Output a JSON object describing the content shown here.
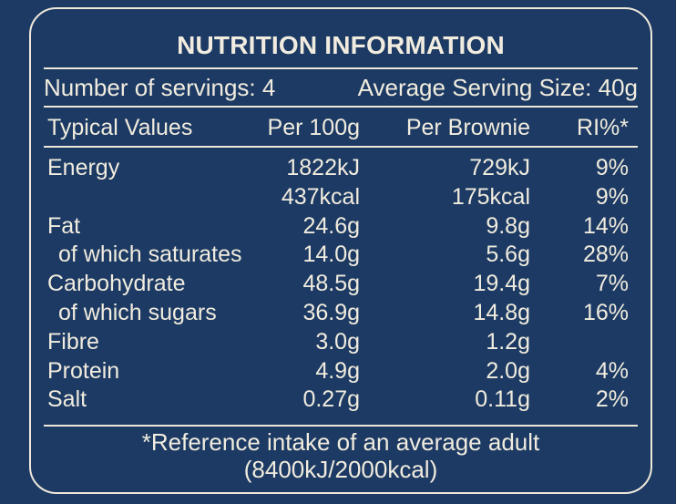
{
  "title": "NUTRITION INFORMATION",
  "servings": {
    "count_label": "Number of servings: 4",
    "size_label": "Average Serving Size: 40g"
  },
  "columns": {
    "label": "Typical Values",
    "per100": "Per 100g",
    "per_brownie": "Per Brownie",
    "ri": "RI%*"
  },
  "rows": [
    {
      "label": "Energy",
      "per100": "1822kJ",
      "per_brownie": "729kJ",
      "ri": "9%"
    },
    {
      "label": "",
      "per100": "437kcal",
      "per_brownie": "175kcal",
      "ri": "9%"
    },
    {
      "label": "Fat",
      "per100": "24.6g",
      "per_brownie": "9.8g",
      "ri": "14%"
    },
    {
      "label": "of which saturates",
      "per100": "14.0g",
      "per_brownie": "5.6g",
      "ri": "28%"
    },
    {
      "label": "Carbohydrate",
      "per100": "48.5g",
      "per_brownie": "19.4g",
      "ri": "7%"
    },
    {
      "label": "of which sugars",
      "per100": "36.9g",
      "per_brownie": "14.8g",
      "ri": "16%"
    },
    {
      "label": "Fibre",
      "per100": "3.0g",
      "per_brownie": "1.2g",
      "ri": ""
    },
    {
      "label": "Protein",
      "per100": "4.9g",
      "per_brownie": "2.0g",
      "ri": "4%"
    },
    {
      "label": "Salt",
      "per100": "0.27g",
      "per_brownie": "0.11g",
      "ri": "2%"
    }
  ],
  "footnote": {
    "line1": "*Reference intake of an average adult",
    "line2": "(8400kJ/2000kcal)"
  },
  "colors": {
    "background": "#1c3a63",
    "text": "#f1ecdf"
  }
}
